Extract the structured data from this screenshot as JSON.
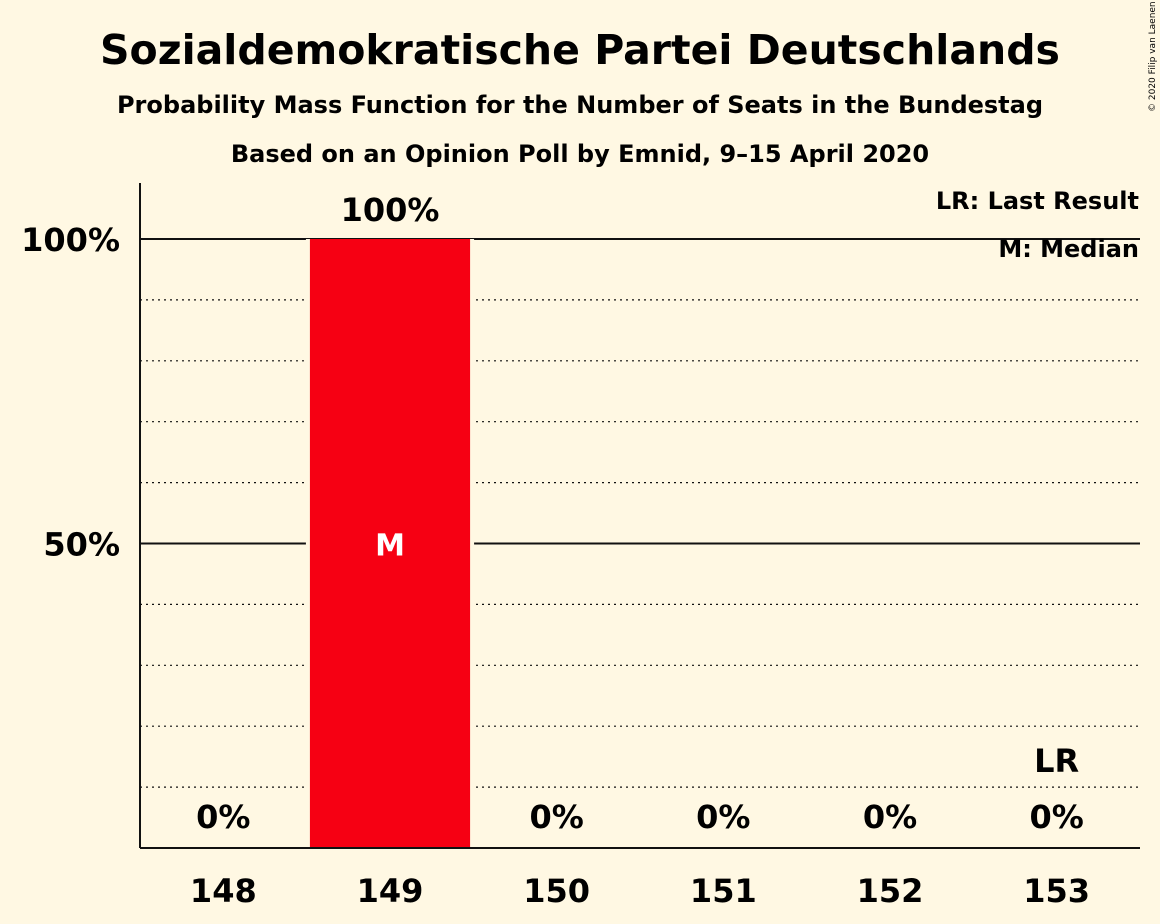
{
  "copyright": "© 2020 Filip van Laenen",
  "chart_data": {
    "type": "bar",
    "title": "Sozialdemokratische Partei Deutschlands",
    "subtitle": "Probability Mass Function for the Number of Seats in the Bundestag",
    "subtitle2": "Based on an Opinion Poll by Emnid, 9–15 April 2020",
    "categories": [
      "148",
      "149",
      "150",
      "151",
      "152",
      "153"
    ],
    "values": [
      0,
      100,
      0,
      0,
      0,
      0
    ],
    "value_labels": [
      "0%",
      "100%",
      "0%",
      "0%",
      "0%",
      "0%"
    ],
    "ylim": [
      0,
      100
    ],
    "y_ticks": [
      {
        "value": 50,
        "label": "50%"
      },
      {
        "value": 100,
        "label": "100%"
      }
    ],
    "minor_gridlines": [
      10,
      20,
      30,
      40,
      60,
      70,
      80,
      90
    ],
    "median": {
      "category": "149",
      "label": "M"
    },
    "last_result": {
      "category": "153",
      "label": "LR"
    },
    "legend": [
      "LR: Last Result",
      "M: Median"
    ],
    "legend_position": "top-right",
    "bar_color": "#f60013",
    "background_color": "#fff8e3"
  }
}
